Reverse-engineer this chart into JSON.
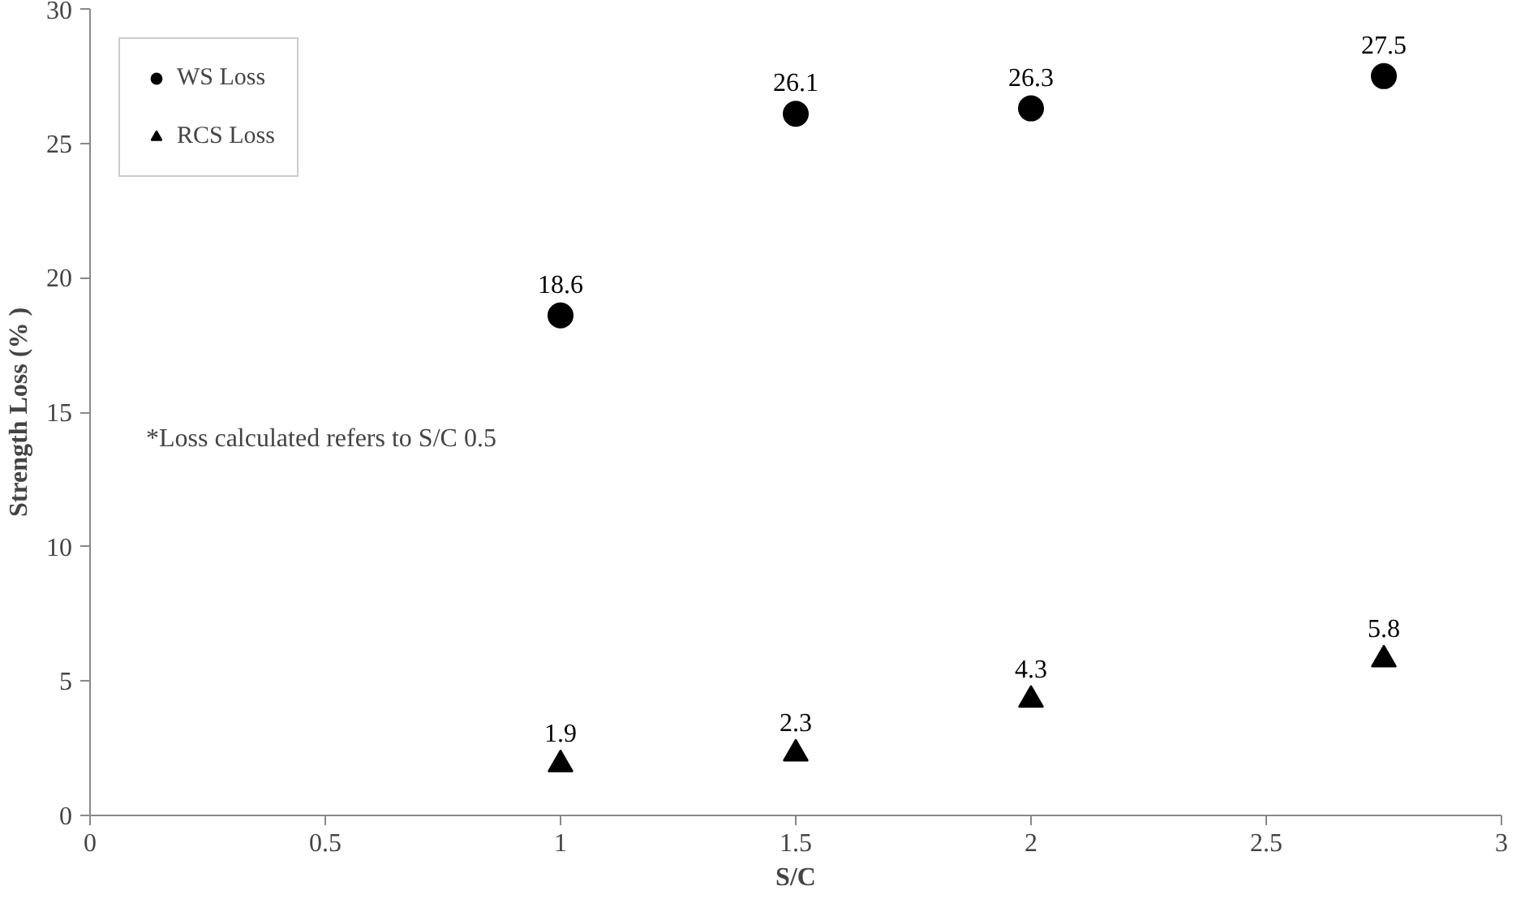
{
  "chart_data": {
    "type": "scatter",
    "xlabel": "S/C",
    "ylabel": "Strength Loss (% )",
    "xlim": [
      0,
      3
    ],
    "xticks": [
      0,
      0.5,
      1,
      1.5,
      2,
      2.5,
      3
    ],
    "ylim": [
      0,
      30
    ],
    "yticks": [
      0,
      5,
      10,
      15,
      20,
      25,
      30
    ],
    "x": [
      1,
      1.5,
      2,
      2.75
    ],
    "series": [
      {
        "name": "WS Loss",
        "color": "#000000",
        "marker": "circle",
        "values": [
          18.6,
          26.1,
          26.3,
          27.5
        ]
      },
      {
        "name": "RCS Loss",
        "color": "#000000",
        "marker": "triangle",
        "values": [
          1.9,
          2.3,
          4.3,
          5.8
        ]
      }
    ],
    "data_labels": true,
    "grid": false,
    "legend": "top left",
    "annotations": [
      "*Loss calculated refers to S/C 0.5"
    ]
  }
}
